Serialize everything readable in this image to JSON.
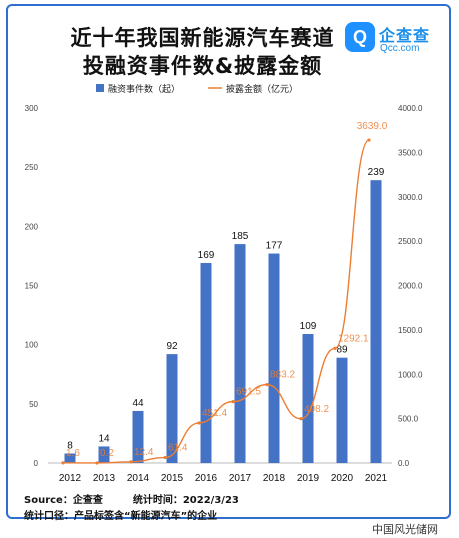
{
  "title_line1": "近十年我国新能源汽车赛道",
  "title_line2": "投融资事件数&披露金额",
  "logo": {
    "name": "企查查",
    "sub": "Qcc.com",
    "mark": "Q"
  },
  "footer": {
    "source": "Source：企查查",
    "stat_time": "统计时间：2022/3/23",
    "caliber": "统计口径：产品标签含“新能源汽车”的企业"
  },
  "watermark": "中国风光储网",
  "colors": {
    "bar": "#4472c4",
    "line": "#ed7d31",
    "border": "#2d6fcf"
  },
  "chart_data": {
    "type": "bar",
    "categories": [
      "2012",
      "2013",
      "2014",
      "2015",
      "2016",
      "2017",
      "2018",
      "2019",
      "2020",
      "2021"
    ],
    "series": [
      {
        "name": "融资事件数（起）",
        "kind": "bar",
        "axis": "left",
        "values": [
          8,
          14,
          44,
          92,
          169,
          185,
          177,
          109,
          89,
          239
        ],
        "labels": [
          "8",
          "14",
          "44",
          "92",
          "169",
          "185",
          "177",
          "109",
          "89",
          "239"
        ]
      },
      {
        "name": "披露金额（亿元）",
        "kind": "line",
        "axis": "right",
        "values": [
          1.6,
          0.2,
          12.4,
          61.4,
          451.4,
          691.5,
          883.2,
          498.2,
          1292.1,
          3639.0
        ],
        "labels": [
          "1.6",
          "0.2",
          "12.4",
          "61.4",
          "451.4",
          "691.5",
          "883.2",
          "498.2",
          "1292.1",
          "3639.0"
        ]
      }
    ],
    "y_left": {
      "lim": [
        0,
        300
      ],
      "ticks": [
        "0",
        "50",
        "100",
        "150",
        "200",
        "250",
        "300"
      ]
    },
    "y_right": {
      "lim": [
        0,
        4000
      ],
      "ticks": [
        "0.0",
        "500.0",
        "1000.0",
        "1500.0",
        "2000.0",
        "2500.0",
        "3000.0",
        "3500.0",
        "4000.0"
      ]
    },
    "legend_placement": "top",
    "grid": false
  }
}
